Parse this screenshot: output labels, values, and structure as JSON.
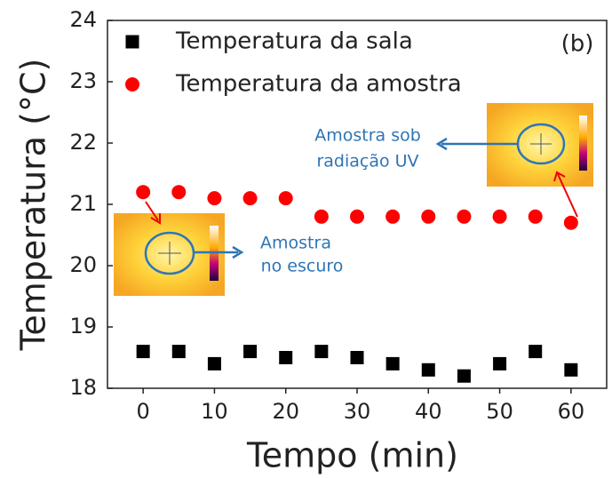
{
  "chart_data": {
    "type": "scatter",
    "x_label": "Tempo (min)",
    "y_label": "Temperatura (°C)",
    "x": [
      0,
      5,
      10,
      15,
      20,
      25,
      30,
      35,
      40,
      45,
      50,
      55,
      60
    ],
    "series": [
      {
        "name": "Temperatura da sala",
        "color": "#000000",
        "marker": "square",
        "values": [
          18.6,
          18.6,
          18.4,
          18.6,
          18.5,
          18.6,
          18.5,
          18.4,
          18.3,
          18.2,
          18.4,
          18.6,
          18.3
        ]
      },
      {
        "name": "Temperatura da amostra",
        "color": "#ff0000",
        "marker": "circle",
        "values": [
          21.2,
          21.2,
          21.1,
          21.1,
          21.1,
          20.8,
          20.8,
          20.8,
          20.8,
          20.8,
          20.8,
          20.8,
          20.7
        ]
      }
    ],
    "xlim": [
      -5,
      65
    ],
    "ylim": [
      18,
      24
    ],
    "xticks": [
      0,
      10,
      20,
      30,
      40,
      50,
      60
    ],
    "yticks": [
      18,
      19,
      20,
      21,
      22,
      23,
      24
    ],
    "legend": "upper left",
    "annotations": [
      "(b)",
      "Amostra sob",
      "radiação UV",
      "Amostra",
      "no escuro"
    ]
  }
}
